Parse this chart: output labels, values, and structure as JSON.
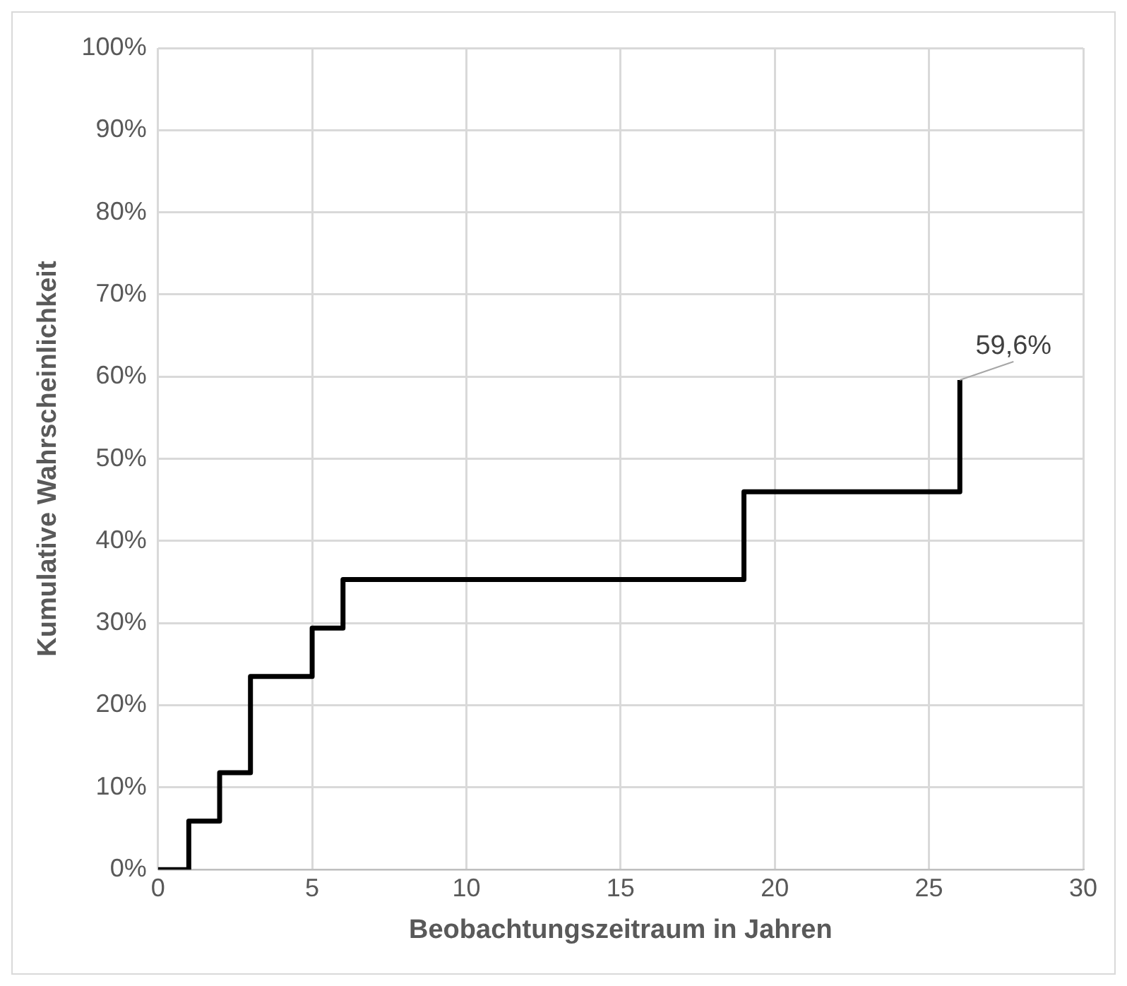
{
  "chart_data": {
    "type": "step",
    "xlabel": "Beobachtungszeitraum in Jahren",
    "ylabel": "Kumulative Wahrscheinlichkeit",
    "x": [
      0,
      1,
      2,
      3,
      5,
      6,
      19,
      26
    ],
    "series": [
      {
        "color": "#000000",
        "values": [
          0,
          5.9,
          11.8,
          23.5,
          29.4,
          35.3,
          46,
          59.6
        ],
        "value_labels": [
          null,
          null,
          null,
          null,
          null,
          null,
          null,
          "59,6%"
        ]
      }
    ],
    "xlim": [
      0,
      30
    ],
    "xticks": [
      0,
      5,
      10,
      15,
      20,
      25,
      30
    ],
    "ylim": [
      0,
      100
    ],
    "yticks": [
      {
        "value": 0,
        "label": "0%"
      },
      {
        "value": 10,
        "label": "10%"
      },
      {
        "value": 20,
        "label": "20%"
      },
      {
        "value": 30,
        "label": "30%"
      },
      {
        "value": 40,
        "label": "40%"
      },
      {
        "value": 50,
        "label": "50%"
      },
      {
        "value": 60,
        "label": "60%"
      },
      {
        "value": 70,
        "label": "70%"
      },
      {
        "value": 80,
        "label": "80%"
      },
      {
        "value": 90,
        "label": "90%"
      },
      {
        "value": 100,
        "label": "100%"
      }
    ],
    "grid": true,
    "legend": false,
    "marker": "none",
    "line_style": "solid"
  }
}
